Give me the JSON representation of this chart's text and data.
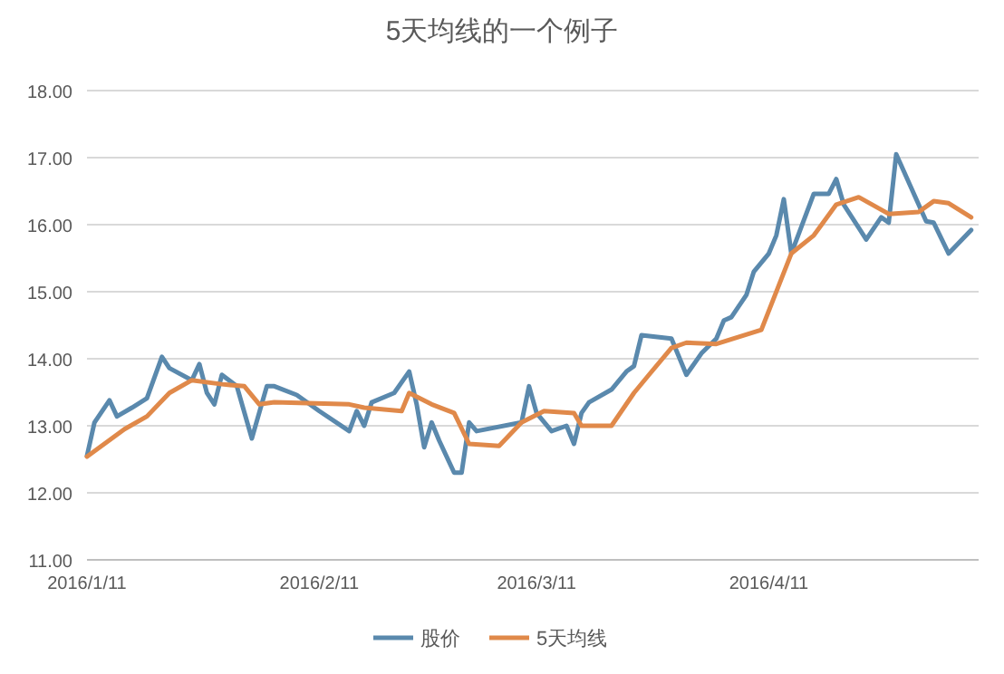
{
  "chart_data": {
    "type": "line",
    "title": "5天均线的一个例子",
    "series": [
      {
        "name": "股价",
        "color": "#5a89ad",
        "x": [
          "2016-01-11",
          "2016-01-12",
          "2016-01-14",
          "2016-01-15",
          "2016-01-17",
          "2016-01-19",
          "2016-01-21",
          "2016-01-22",
          "2016-01-25",
          "2016-01-26",
          "2016-01-27",
          "2016-01-28",
          "2016-01-29",
          "2016-01-31",
          "2016-02-02",
          "2016-02-04",
          "2016-02-05",
          "2016-02-08",
          "2016-02-11",
          "2016-02-15",
          "2016-02-16",
          "2016-02-17",
          "2016-02-18",
          "2016-02-21",
          "2016-02-23",
          "2016-02-24",
          "2016-02-25",
          "2016-02-26",
          "2016-02-27",
          "2016-02-29",
          "2016-03-01",
          "2016-03-02",
          "2016-03-03",
          "2016-03-09",
          "2016-03-10",
          "2016-03-11",
          "2016-03-13",
          "2016-03-15",
          "2016-03-16",
          "2016-03-17",
          "2016-03-18",
          "2016-03-21",
          "2016-03-23",
          "2016-03-24",
          "2016-03-25",
          "2016-03-29",
          "2016-03-31",
          "2016-04-02",
          "2016-04-04",
          "2016-04-05",
          "2016-04-06",
          "2016-04-08",
          "2016-04-09",
          "2016-04-11",
          "2016-04-12",
          "2016-04-13",
          "2016-04-14",
          "2016-04-17",
          "2016-04-19",
          "2016-04-20",
          "2016-04-21",
          "2016-04-24",
          "2016-04-26",
          "2016-04-27",
          "2016-04-28",
          "2016-05-02",
          "2016-05-03",
          "2016-05-05",
          "2016-05-08"
        ],
        "values": [
          12.55,
          13.05,
          13.38,
          13.14,
          13.27,
          13.41,
          14.03,
          13.86,
          13.68,
          13.92,
          13.49,
          13.32,
          13.76,
          13.59,
          12.81,
          13.59,
          13.59,
          13.46,
          13.22,
          12.92,
          13.22,
          13.0,
          13.35,
          13.49,
          13.81,
          13.32,
          12.68,
          13.05,
          12.78,
          12.3,
          12.3,
          13.05,
          12.92,
          13.05,
          13.59,
          13.19,
          12.92,
          13.0,
          12.73,
          13.19,
          13.35,
          13.54,
          13.81,
          13.89,
          14.35,
          14.3,
          13.76,
          14.08,
          14.3,
          14.57,
          14.62,
          14.95,
          15.3,
          15.57,
          15.84,
          16.38,
          15.57,
          16.46,
          16.46,
          16.68,
          16.3,
          15.78,
          16.11,
          16.03,
          17.05,
          16.05,
          16.03,
          15.57,
          15.92
        ]
      },
      {
        "name": "5天均线",
        "color": "#e0894a",
        "x": [
          "2016-01-11",
          "2016-01-16",
          "2016-01-19",
          "2016-01-22",
          "2016-01-25",
          "2016-01-29",
          "2016-02-01",
          "2016-02-03",
          "2016-02-05",
          "2016-02-15",
          "2016-02-17",
          "2016-02-22",
          "2016-02-23",
          "2016-02-26",
          "2016-02-29",
          "2016-03-02",
          "2016-03-06",
          "2016-03-09",
          "2016-03-12",
          "2016-03-16",
          "2016-03-17",
          "2016-03-21",
          "2016-03-24",
          "2016-03-26",
          "2016-03-29",
          "2016-03-31",
          "2016-04-04",
          "2016-04-10",
          "2016-04-14",
          "2016-04-17",
          "2016-04-20",
          "2016-04-23",
          "2016-04-27",
          "2016-05-01",
          "2016-05-03",
          "2016-05-05",
          "2016-05-08"
        ],
        "values": [
          12.54,
          12.95,
          13.14,
          13.49,
          13.68,
          13.62,
          13.59,
          13.32,
          13.35,
          13.32,
          13.27,
          13.22,
          13.49,
          13.32,
          13.19,
          12.73,
          12.7,
          13.05,
          13.22,
          13.19,
          13.0,
          13.0,
          13.49,
          13.76,
          14.16,
          14.24,
          14.22,
          14.43,
          15.57,
          15.84,
          16.3,
          16.41,
          16.16,
          16.19,
          16.35,
          16.32,
          16.11
        ]
      }
    ],
    "xlim": [
      "2016-01-11",
      "2016-05-09"
    ],
    "xticks": [
      {
        "value": "2016-01-11",
        "label": "2016/1/11"
      },
      {
        "value": "2016-02-11",
        "label": "2016/2/11"
      },
      {
        "value": "2016-03-11",
        "label": "2016/3/11"
      },
      {
        "value": "2016-04-11",
        "label": "2016/4/11"
      }
    ],
    "ylim": [
      11,
      18
    ],
    "yticks": [
      {
        "value": 11,
        "label": "11.00"
      },
      {
        "value": 12,
        "label": "12.00"
      },
      {
        "value": 13,
        "label": "13.00"
      },
      {
        "value": 14,
        "label": "14.00"
      },
      {
        "value": 15,
        "label": "15.00"
      },
      {
        "value": 16,
        "label": "16.00"
      },
      {
        "value": 17,
        "label": "17.00"
      },
      {
        "value": 18,
        "label": "18.00"
      }
    ],
    "grid": "y",
    "legend": "bottom"
  }
}
